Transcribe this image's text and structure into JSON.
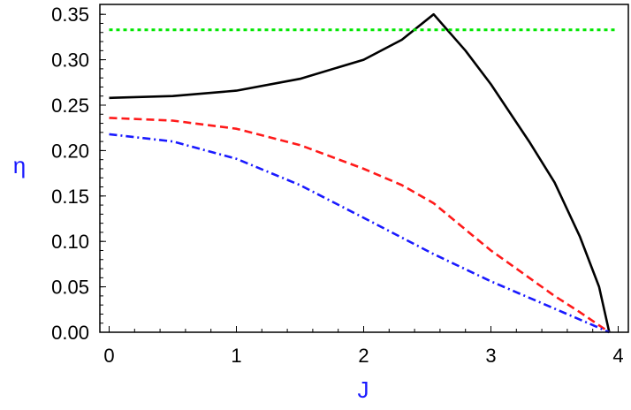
{
  "chart_data": {
    "type": "line",
    "title": "",
    "xlabel": "J",
    "ylabel": "η",
    "xlim": [
      -0.07,
      4.08
    ],
    "ylim": [
      0,
      0.36
    ],
    "xticks": [
      "0",
      "1",
      "2",
      "3",
      "4"
    ],
    "yticks": [
      "0.00",
      "0.05",
      "0.10",
      "0.15",
      "0.20",
      "0.25",
      "0.30",
      "0.35"
    ],
    "grid": false,
    "legend": "none",
    "axis_label_color": "#1a1aff",
    "series": [
      {
        "color": "#000000",
        "style": "solid",
        "x": [
          0,
          0.5,
          1.0,
          1.5,
          2.0,
          2.3,
          2.55,
          2.8,
          3.0,
          3.3,
          3.5,
          3.7,
          3.85,
          3.93
        ],
        "y": [
          0.258,
          0.26,
          0.266,
          0.279,
          0.3,
          0.322,
          0.35,
          0.31,
          0.273,
          0.21,
          0.165,
          0.105,
          0.05,
          0.0
        ]
      },
      {
        "color": "#ff1a1a",
        "style": "dashed",
        "x": [
          0,
          0.5,
          1.0,
          1.5,
          2.0,
          2.3,
          2.55,
          2.8,
          3.0,
          3.3,
          3.5,
          3.7,
          3.93
        ],
        "y": [
          0.236,
          0.233,
          0.224,
          0.206,
          0.18,
          0.162,
          0.142,
          0.113,
          0.09,
          0.06,
          0.04,
          0.022,
          0.0
        ]
      },
      {
        "color": "#1a1aff",
        "style": "dashdot",
        "x": [
          0,
          0.5,
          1.0,
          1.5,
          2.0,
          2.55,
          3.0,
          3.5,
          3.93
        ],
        "y": [
          0.218,
          0.21,
          0.191,
          0.162,
          0.126,
          0.086,
          0.056,
          0.026,
          0.0
        ]
      },
      {
        "color": "#00e600",
        "style": "dotted",
        "x": [
          0,
          4.0
        ],
        "y": [
          0.333,
          0.333
        ]
      }
    ]
  }
}
